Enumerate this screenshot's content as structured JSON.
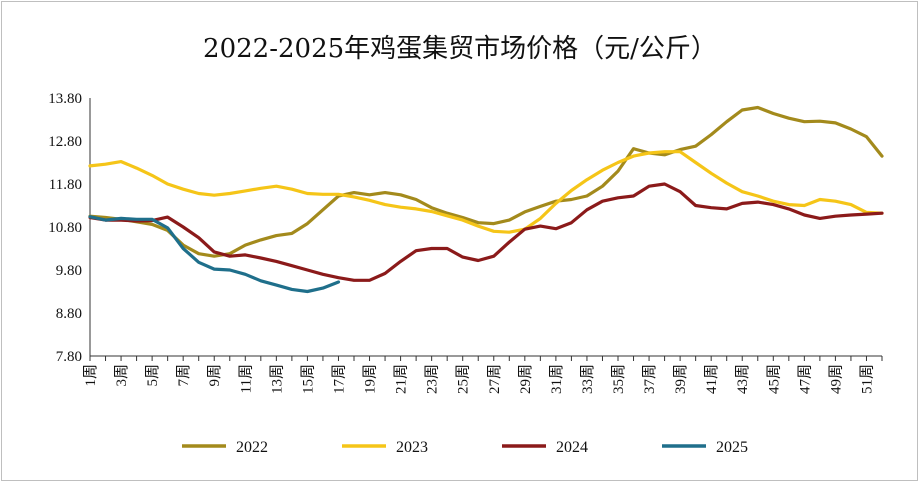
{
  "chart_data": {
    "type": "line",
    "title": "2022-2025年鸡蛋集贸市场价格（元/公斤）",
    "xlabel": "",
    "ylabel": "",
    "ylim": [
      7.8,
      13.8
    ],
    "yticks": [
      "13.80",
      "12.80",
      "11.80",
      "10.80",
      "9.80",
      "8.80",
      "7.80"
    ],
    "ytick_values": [
      13.8,
      12.8,
      11.8,
      10.8,
      9.8,
      8.8,
      7.8
    ],
    "x_tick_labels": [
      "1周",
      "3周",
      "5周",
      "7周",
      "9周",
      "11周",
      "13周",
      "15周",
      "17周",
      "19周",
      "21周",
      "23周",
      "25周",
      "27周",
      "29周",
      "31周",
      "33周",
      "35周",
      "37周",
      "39周",
      "41周",
      "43周",
      "45周",
      "47周",
      "49周",
      "51周"
    ],
    "x_tick_weeks": [
      1,
      3,
      5,
      7,
      9,
      11,
      13,
      15,
      17,
      19,
      21,
      23,
      25,
      27,
      29,
      31,
      33,
      35,
      37,
      39,
      41,
      43,
      45,
      47,
      49,
      51
    ],
    "grid": false,
    "legend": "bottom",
    "series": [
      {
        "name": "2022",
        "color": "#a38a1c",
        "x": [
          1,
          2,
          3,
          4,
          5,
          6,
          7,
          8,
          9,
          10,
          11,
          12,
          13,
          14,
          15,
          16,
          17,
          18,
          19,
          20,
          21,
          22,
          23,
          24,
          25,
          26,
          27,
          28,
          29,
          30,
          31,
          32,
          33,
          34,
          35,
          36,
          37,
          38,
          39,
          40,
          41,
          42,
          43,
          44,
          45,
          46,
          47,
          48,
          49,
          50,
          51,
          52
        ],
        "values": [
          11.05,
          11.02,
          10.98,
          10.92,
          10.86,
          10.72,
          10.38,
          10.18,
          10.12,
          10.18,
          10.38,
          10.5,
          10.6,
          10.65,
          10.88,
          11.2,
          11.52,
          11.6,
          11.55,
          11.6,
          11.55,
          11.44,
          11.25,
          11.12,
          11.02,
          10.9,
          10.88,
          10.96,
          11.15,
          11.28,
          11.4,
          11.44,
          11.52,
          11.75,
          12.1,
          12.62,
          12.52,
          12.48,
          12.6,
          12.68,
          12.95,
          13.25,
          13.52,
          13.58,
          13.44,
          13.33,
          13.25,
          13.26,
          13.22,
          13.08,
          12.9,
          12.45
        ]
      },
      {
        "name": "2023",
        "color": "#f5c518",
        "x": [
          1,
          2,
          3,
          4,
          5,
          6,
          7,
          8,
          9,
          10,
          11,
          12,
          13,
          14,
          15,
          16,
          17,
          18,
          19,
          20,
          21,
          22,
          23,
          24,
          25,
          26,
          27,
          28,
          29,
          30,
          31,
          32,
          33,
          34,
          35,
          36,
          37,
          38,
          39,
          40,
          41,
          42,
          43,
          44,
          45,
          46,
          47,
          48,
          49,
          50,
          51,
          52
        ],
        "values": [
          12.22,
          12.26,
          12.32,
          12.17,
          12.0,
          11.8,
          11.68,
          11.58,
          11.54,
          11.58,
          11.64,
          11.7,
          11.75,
          11.68,
          11.58,
          11.56,
          11.56,
          11.5,
          11.42,
          11.32,
          11.26,
          11.22,
          11.16,
          11.06,
          10.96,
          10.82,
          10.7,
          10.68,
          10.75,
          11.0,
          11.35,
          11.65,
          11.9,
          12.12,
          12.3,
          12.45,
          12.52,
          12.55,
          12.55,
          12.3,
          12.05,
          11.82,
          11.62,
          11.52,
          11.4,
          11.32,
          11.3,
          11.44,
          11.4,
          11.32,
          11.14,
          11.12
        ]
      },
      {
        "name": "2024",
        "color": "#8b1a1a",
        "x": [
          1,
          2,
          3,
          4,
          5,
          6,
          7,
          8,
          9,
          10,
          11,
          12,
          13,
          14,
          15,
          16,
          17,
          18,
          19,
          20,
          21,
          22,
          23,
          24,
          25,
          26,
          27,
          28,
          29,
          30,
          31,
          32,
          33,
          34,
          35,
          36,
          37,
          38,
          39,
          40,
          41,
          42,
          43,
          44,
          45,
          46,
          47,
          48,
          49,
          50,
          51,
          52
        ],
        "values": [
          11.02,
          10.96,
          10.96,
          10.94,
          10.95,
          11.03,
          10.8,
          10.55,
          10.22,
          10.12,
          10.15,
          10.08,
          10.0,
          9.9,
          9.8,
          9.7,
          9.62,
          9.56,
          9.56,
          9.72,
          10.0,
          10.25,
          10.3,
          10.3,
          10.1,
          10.02,
          10.12,
          10.45,
          10.75,
          10.82,
          10.76,
          10.9,
          11.2,
          11.4,
          11.48,
          11.52,
          11.75,
          11.8,
          11.62,
          11.3,
          11.25,
          11.22,
          11.35,
          11.38,
          11.32,
          11.22,
          11.08,
          11.0,
          11.05,
          11.08,
          11.1,
          11.12
        ]
      },
      {
        "name": "2025",
        "color": "#1f6f8b",
        "x": [
          1,
          2,
          3,
          4,
          5,
          6,
          7,
          8,
          9,
          10,
          11,
          12,
          13,
          14,
          15,
          16,
          17
        ],
        "values": [
          11.04,
          10.96,
          11.0,
          10.98,
          10.98,
          10.78,
          10.3,
          9.98,
          9.82,
          9.8,
          9.7,
          9.55,
          9.45,
          9.35,
          9.3,
          9.38,
          9.52
        ]
      }
    ]
  }
}
